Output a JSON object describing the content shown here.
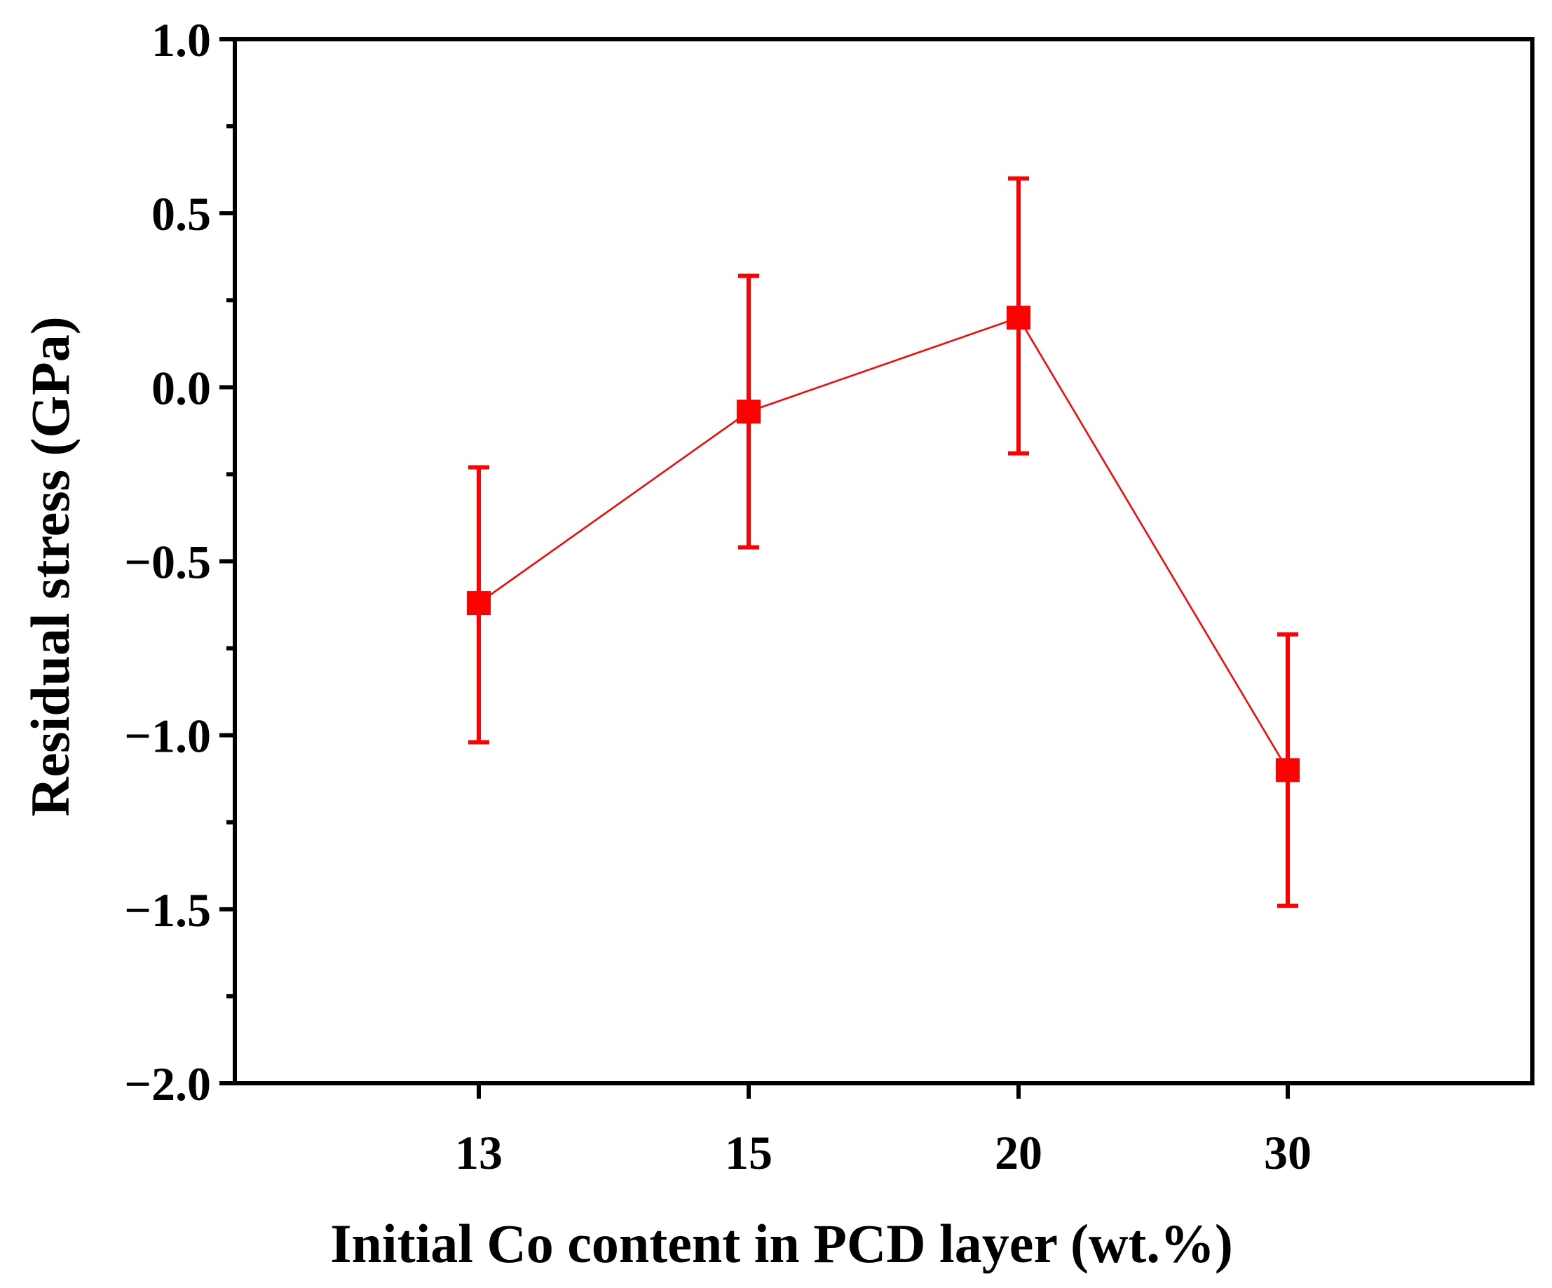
{
  "chart_data": {
    "type": "line",
    "title": "",
    "xlabel": "Initial Co content in PCD layer (wt.%)",
    "ylabel": "Residual stress (GPa)",
    "categories": [
      "13",
      "15",
      "20",
      "30"
    ],
    "series": [
      {
        "name": "Residual stress",
        "color": "#ff0000",
        "marker": "square",
        "values": [
          -0.62,
          -0.07,
          0.2,
          -1.1
        ],
        "error_low": [
          -1.02,
          -0.46,
          -0.19,
          -1.49
        ],
        "error_high": [
          -0.23,
          0.32,
          0.6,
          -0.71
        ]
      }
    ],
    "ylim": [
      -2.0,
      1.0
    ],
    "yticks": [
      1.0,
      0.5,
      0.0,
      -0.5,
      -1.0,
      -1.5,
      -2.0
    ],
    "ytick_labels": [
      "1.0",
      "0.5",
      "0.0",
      "−0.5",
      "−1.0",
      "−1.5",
      "−2.0"
    ],
    "grid": false,
    "legend": "none",
    "colors": {
      "axis": "#000000",
      "series": "#ff0000"
    }
  }
}
